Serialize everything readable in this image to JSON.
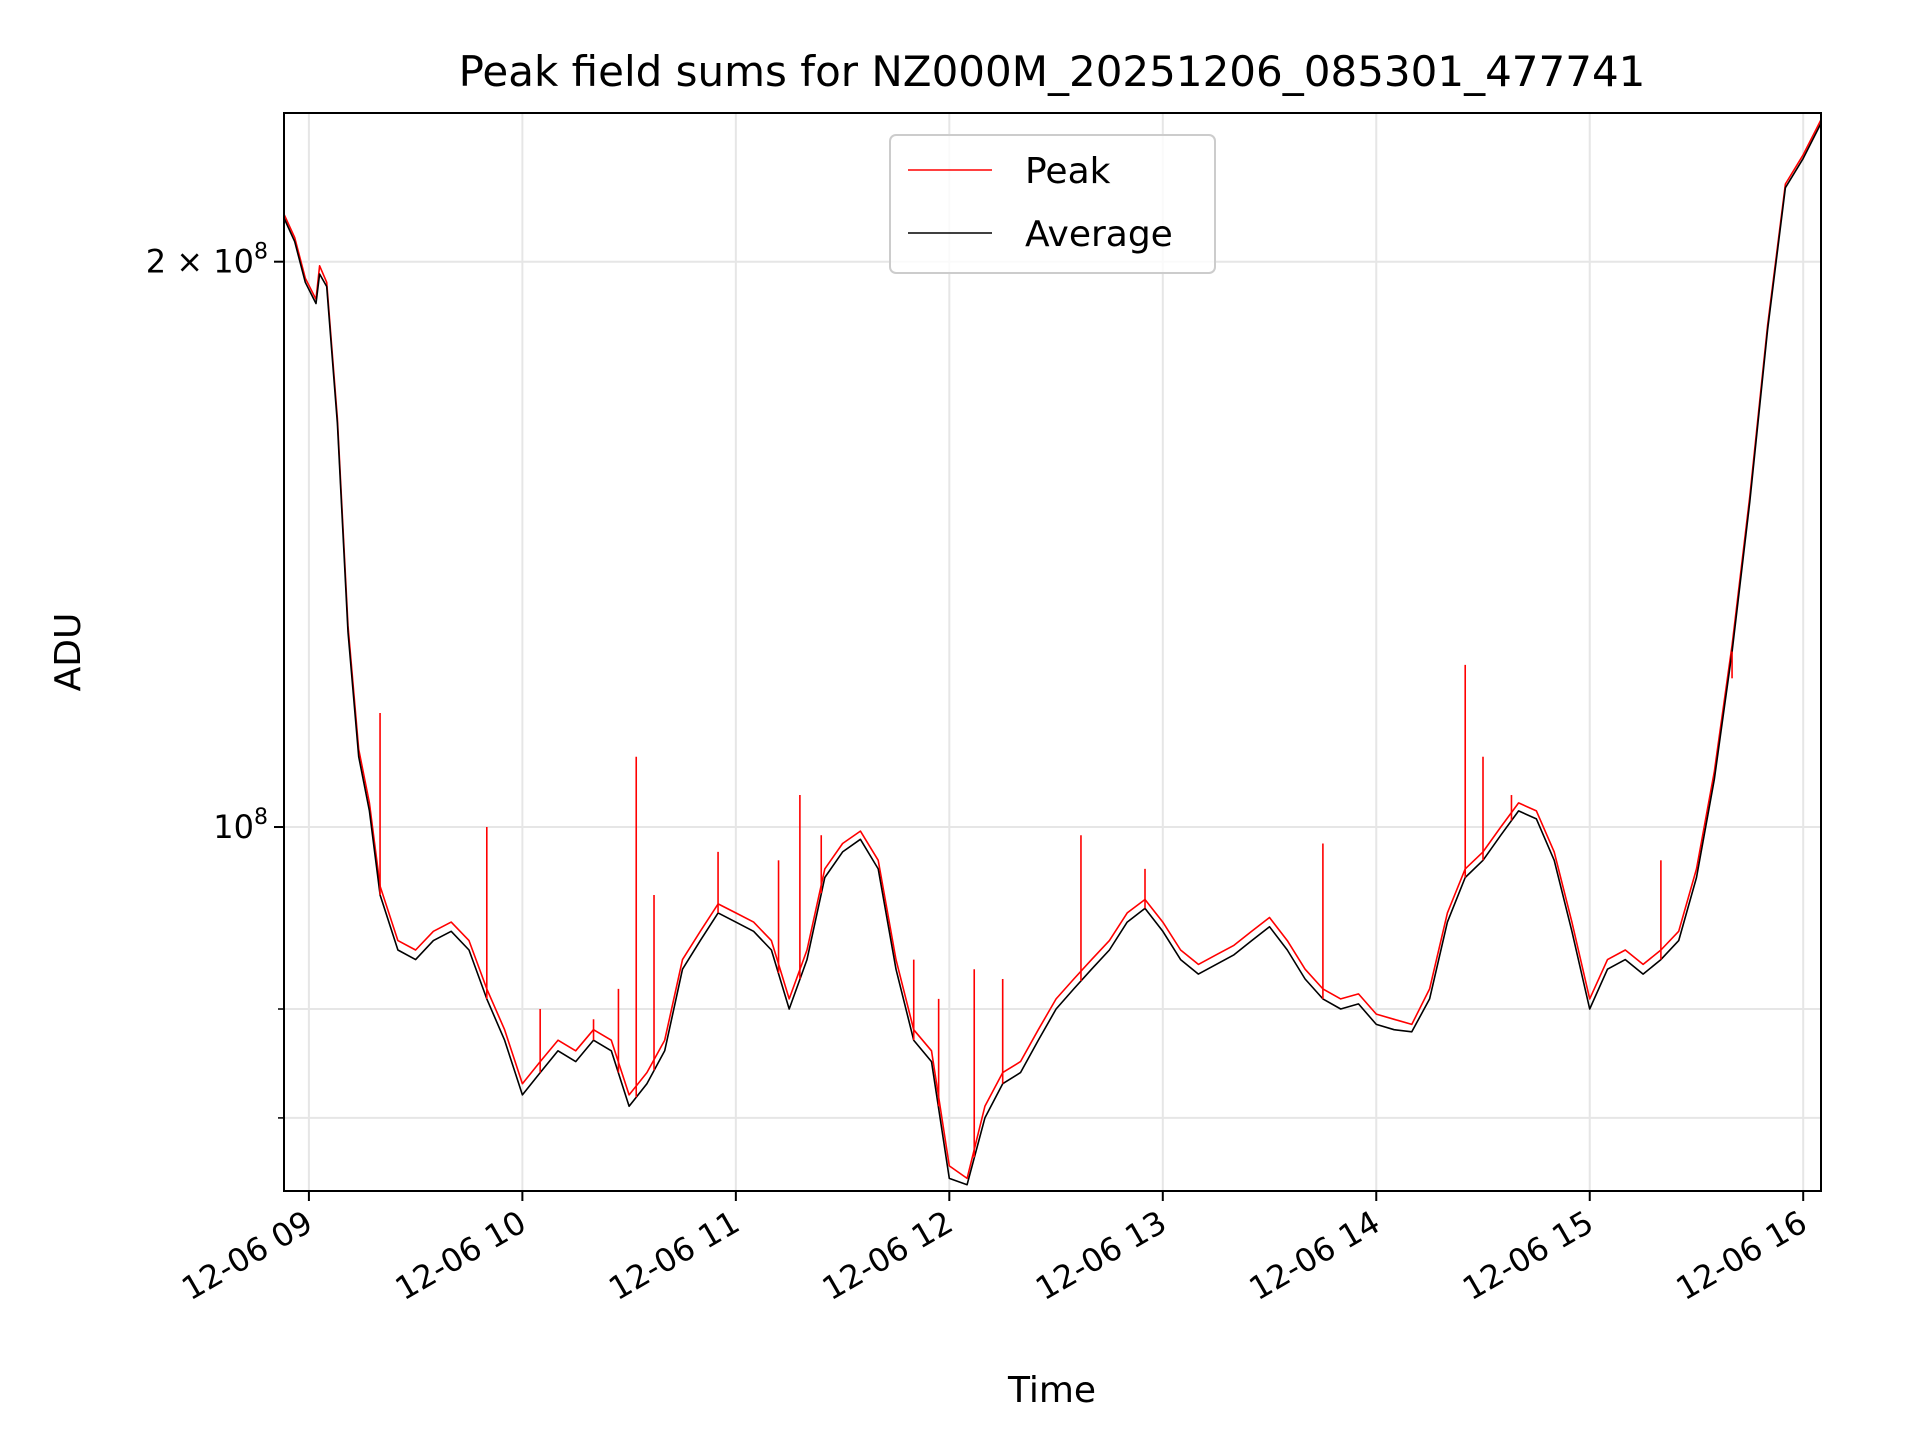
{
  "chart_data": {
    "type": "line",
    "title": "Peak field sums for NZ000M_20251206_085301_477741",
    "xlabel": "Time",
    "ylabel": "ADU",
    "y_scale": "log",
    "ylim": [
      64000000,
      240000000
    ],
    "xlim": [
      "12-06 08:53",
      "12-06 16:05"
    ],
    "grid": true,
    "legend_position": "upper-center",
    "x_ticks": [
      "12-06 09",
      "12-06 10",
      "12-06 11",
      "12-06 12",
      "12-06 13",
      "12-06 14",
      "12-06 15",
      "12-06 16"
    ],
    "y_major_ticks": [
      {
        "value": 100000000,
        "mantissa": "",
        "base": "10",
        "exp": "8"
      },
      {
        "value": 200000000,
        "mantissa": "2 × ",
        "base": "10",
        "exp": "8"
      }
    ],
    "y_minor_ticks": [
      70000000,
      80000000,
      300000000
    ],
    "series": [
      {
        "name": "Peak",
        "color": "#ff0000",
        "points": [
          [
            "12-06 08:53",
            212000000
          ],
          [
            "12-06 08:56",
            206000000
          ],
          [
            "12-06 08:59",
            196000000
          ],
          [
            "12-06 09:02",
            191000000
          ],
          [
            "12-06 09:03",
            199000000
          ],
          [
            "12-06 09:05",
            195000000
          ],
          [
            "12-06 09:08",
            165000000
          ],
          [
            "12-06 09:11",
            128000000
          ],
          [
            "12-06 09:14",
            110000000
          ],
          [
            "12-06 09:17",
            103000000
          ],
          [
            "12-06 09:20",
            93000000
          ],
          [
            "12-06 09:25",
            87000000
          ],
          [
            "12-06 09:30",
            86000000
          ],
          [
            "12-06 09:35",
            88000000
          ],
          [
            "12-06 09:40",
            89000000
          ],
          [
            "12-06 09:45",
            87000000
          ],
          [
            "12-06 09:50",
            82000000
          ],
          [
            "12-06 09:55",
            78000000
          ],
          [
            "12-06 10:00",
            73000000
          ],
          [
            "12-06 10:05",
            75000000
          ],
          [
            "12-06 10:10",
            77000000
          ],
          [
            "12-06 10:15",
            76000000
          ],
          [
            "12-06 10:20",
            78000000
          ],
          [
            "12-06 10:25",
            77000000
          ],
          [
            "12-06 10:30",
            72000000
          ],
          [
            "12-06 10:35",
            74000000
          ],
          [
            "12-06 10:40",
            77000000
          ],
          [
            "12-06 10:45",
            85000000
          ],
          [
            "12-06 10:50",
            88000000
          ],
          [
            "12-06 10:55",
            91000000
          ],
          [
            "12-06 11:00",
            90000000
          ],
          [
            "12-06 11:05",
            89000000
          ],
          [
            "12-06 11:10",
            87000000
          ],
          [
            "12-06 11:15",
            81000000
          ],
          [
            "12-06 11:20",
            86000000
          ],
          [
            "12-06 11:25",
            95000000
          ],
          [
            "12-06 11:30",
            98000000
          ],
          [
            "12-06 11:35",
            99500000
          ],
          [
            "12-06 11:40",
            96000000
          ],
          [
            "12-06 11:45",
            85000000
          ],
          [
            "12-06 11:50",
            78000000
          ],
          [
            "12-06 11:55",
            76000000
          ],
          [
            "12-06 12:00",
            66000000
          ],
          [
            "12-06 12:05",
            65000000
          ],
          [
            "12-06 12:10",
            71000000
          ],
          [
            "12-06 12:15",
            74000000
          ],
          [
            "12-06 12:20",
            75000000
          ],
          [
            "12-06 12:25",
            78000000
          ],
          [
            "12-06 12:30",
            81000000
          ],
          [
            "12-06 12:35",
            83000000
          ],
          [
            "12-06 12:40",
            85000000
          ],
          [
            "12-06 12:45",
            87000000
          ],
          [
            "12-06 12:50",
            90000000
          ],
          [
            "12-06 12:55",
            91500000
          ],
          [
            "12-06 13:00",
            89000000
          ],
          [
            "12-06 13:05",
            86000000
          ],
          [
            "12-06 13:10",
            84500000
          ],
          [
            "12-06 13:15",
            85500000
          ],
          [
            "12-06 13:20",
            86500000
          ],
          [
            "12-06 13:25",
            88000000
          ],
          [
            "12-06 13:30",
            89500000
          ],
          [
            "12-06 13:35",
            87000000
          ],
          [
            "12-06 13:40",
            84000000
          ],
          [
            "12-06 13:45",
            82000000
          ],
          [
            "12-06 13:50",
            81000000
          ],
          [
            "12-06 13:55",
            81500000
          ],
          [
            "12-06 14:00",
            79500000
          ],
          [
            "12-06 14:05",
            79000000
          ],
          [
            "12-06 14:10",
            78500000
          ],
          [
            "12-06 14:15",
            82000000
          ],
          [
            "12-06 14:20",
            90000000
          ],
          [
            "12-06 14:25",
            95000000
          ],
          [
            "12-06 14:30",
            97000000
          ],
          [
            "12-06 14:35",
            100000000
          ],
          [
            "12-06 14:40",
            103000000
          ],
          [
            "12-06 14:45",
            102000000
          ],
          [
            "12-06 14:50",
            97000000
          ],
          [
            "12-06 14:55",
            89000000
          ],
          [
            "12-06 15:00",
            81000000
          ],
          [
            "12-06 15:05",
            85000000
          ],
          [
            "12-06 15:10",
            86000000
          ],
          [
            "12-06 15:15",
            84500000
          ],
          [
            "12-06 15:20",
            86000000
          ],
          [
            "12-06 15:25",
            88000000
          ],
          [
            "12-06 15:30",
            95000000
          ],
          [
            "12-06 15:35",
            107000000
          ],
          [
            "12-06 15:40",
            125000000
          ],
          [
            "12-06 15:45",
            150000000
          ],
          [
            "12-06 15:50",
            185000000
          ],
          [
            "12-06 15:55",
            220000000
          ],
          [
            "12-06 16:00",
            228000000
          ],
          [
            "12-06 16:05",
            238000000
          ]
        ],
        "spikes": [
          [
            "12-06 09:20",
            115000000
          ],
          [
            "12-06 09:50",
            100000000
          ],
          [
            "12-06 10:05",
            80000000
          ],
          [
            "12-06 10:20",
            79000000
          ],
          [
            "12-06 10:27",
            82000000
          ],
          [
            "12-06 10:32",
            109000000
          ],
          [
            "12-06 10:37",
            92000000
          ],
          [
            "12-06 10:55",
            97000000
          ],
          [
            "12-06 11:12",
            96000000
          ],
          [
            "12-06 11:18",
            104000000
          ],
          [
            "12-06 11:24",
            99000000
          ],
          [
            "12-06 11:50",
            85000000
          ],
          [
            "12-06 11:57",
            81000000
          ],
          [
            "12-06 12:07",
            84000000
          ],
          [
            "12-06 12:15",
            83000000
          ],
          [
            "12-06 12:37",
            99000000
          ],
          [
            "12-06 12:55",
            95000000
          ],
          [
            "12-06 13:45",
            98000000
          ],
          [
            "12-06 14:25",
            122000000
          ],
          [
            "12-06 14:30",
            109000000
          ],
          [
            "12-06 14:38",
            104000000
          ],
          [
            "12-06 15:20",
            96000000
          ],
          [
            "12-06 15:40",
            120000000
          ]
        ]
      },
      {
        "name": "Average",
        "color": "#000000",
        "points": [
          [
            "12-06 08:53",
            211000000
          ],
          [
            "12-06 08:56",
            205000000
          ],
          [
            "12-06 08:59",
            195000000
          ],
          [
            "12-06 09:02",
            190000000
          ],
          [
            "12-06 09:03",
            197000000
          ],
          [
            "12-06 09:05",
            194000000
          ],
          [
            "12-06 09:08",
            164000000
          ],
          [
            "12-06 09:11",
            127000000
          ],
          [
            "12-06 09:14",
            109000000
          ],
          [
            "12-06 09:17",
            102000000
          ],
          [
            "12-06 09:20",
            92000000
          ],
          [
            "12-06 09:25",
            86000000
          ],
          [
            "12-06 09:30",
            85000000
          ],
          [
            "12-06 09:35",
            87000000
          ],
          [
            "12-06 09:40",
            88000000
          ],
          [
            "12-06 09:45",
            86000000
          ],
          [
            "12-06 09:50",
            81000000
          ],
          [
            "12-06 09:55",
            77000000
          ],
          [
            "12-06 10:00",
            72000000
          ],
          [
            "12-06 10:05",
            74000000
          ],
          [
            "12-06 10:10",
            76000000
          ],
          [
            "12-06 10:15",
            75000000
          ],
          [
            "12-06 10:20",
            77000000
          ],
          [
            "12-06 10:25",
            76000000
          ],
          [
            "12-06 10:30",
            71000000
          ],
          [
            "12-06 10:35",
            73000000
          ],
          [
            "12-06 10:40",
            76000000
          ],
          [
            "12-06 10:45",
            84000000
          ],
          [
            "12-06 10:50",
            87000000
          ],
          [
            "12-06 10:55",
            90000000
          ],
          [
            "12-06 11:00",
            89000000
          ],
          [
            "12-06 11:05",
            88000000
          ],
          [
            "12-06 11:10",
            86000000
          ],
          [
            "12-06 11:15",
            80000000
          ],
          [
            "12-06 11:20",
            85000000
          ],
          [
            "12-06 11:25",
            94000000
          ],
          [
            "12-06 11:30",
            97000000
          ],
          [
            "12-06 11:35",
            98500000
          ],
          [
            "12-06 11:40",
            95000000
          ],
          [
            "12-06 11:45",
            84000000
          ],
          [
            "12-06 11:50",
            77000000
          ],
          [
            "12-06 11:55",
            75000000
          ],
          [
            "12-06 12:00",
            65000000
          ],
          [
            "12-06 12:05",
            64500000
          ],
          [
            "12-06 12:10",
            70000000
          ],
          [
            "12-06 12:15",
            73000000
          ],
          [
            "12-06 12:20",
            74000000
          ],
          [
            "12-06 12:25",
            77000000
          ],
          [
            "12-06 12:30",
            80000000
          ],
          [
            "12-06 12:35",
            82000000
          ],
          [
            "12-06 12:40",
            84000000
          ],
          [
            "12-06 12:45",
            86000000
          ],
          [
            "12-06 12:50",
            89000000
          ],
          [
            "12-06 12:55",
            90500000
          ],
          [
            "12-06 13:00",
            88000000
          ],
          [
            "12-06 13:05",
            85000000
          ],
          [
            "12-06 13:10",
            83500000
          ],
          [
            "12-06 13:15",
            84500000
          ],
          [
            "12-06 13:20",
            85500000
          ],
          [
            "12-06 13:25",
            87000000
          ],
          [
            "12-06 13:30",
            88500000
          ],
          [
            "12-06 13:35",
            86000000
          ],
          [
            "12-06 13:40",
            83000000
          ],
          [
            "12-06 13:45",
            81000000
          ],
          [
            "12-06 13:50",
            80000000
          ],
          [
            "12-06 13:55",
            80500000
          ],
          [
            "12-06 14:00",
            78500000
          ],
          [
            "12-06 14:05",
            78000000
          ],
          [
            "12-06 14:10",
            77800000
          ],
          [
            "12-06 14:15",
            81000000
          ],
          [
            "12-06 14:20",
            89000000
          ],
          [
            "12-06 14:25",
            94000000
          ],
          [
            "12-06 14:30",
            96000000
          ],
          [
            "12-06 14:35",
            99000000
          ],
          [
            "12-06 14:40",
            102000000
          ],
          [
            "12-06 14:45",
            101000000
          ],
          [
            "12-06 14:50",
            96000000
          ],
          [
            "12-06 14:55",
            88000000
          ],
          [
            "12-06 15:00",
            80000000
          ],
          [
            "12-06 15:05",
            84000000
          ],
          [
            "12-06 15:10",
            85000000
          ],
          [
            "12-06 15:15",
            83500000
          ],
          [
            "12-06 15:20",
            85000000
          ],
          [
            "12-06 15:25",
            87000000
          ],
          [
            "12-06 15:30",
            94000000
          ],
          [
            "12-06 15:35",
            106000000
          ],
          [
            "12-06 15:40",
            124000000
          ],
          [
            "12-06 15:45",
            149000000
          ],
          [
            "12-06 15:50",
            184000000
          ],
          [
            "12-06 15:55",
            219000000
          ],
          [
            "12-06 16:00",
            227000000
          ],
          [
            "12-06 16:05",
            237000000
          ]
        ]
      }
    ]
  }
}
